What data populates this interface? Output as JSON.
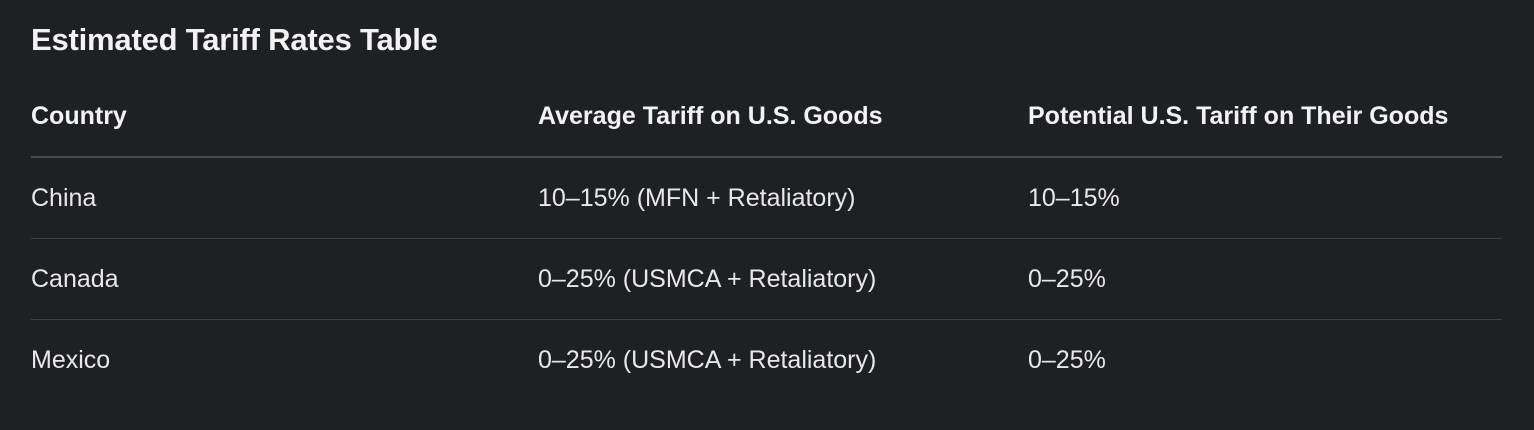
{
  "title": "Estimated Tariff Rates Table",
  "table": {
    "headers": [
      "Country",
      "Average Tariff on U.S. Goods",
      "Potential U.S. Tariff on Their Goods"
    ],
    "rows": [
      [
        "China",
        "10–15% (MFN + Retaliatory)",
        "10–15%"
      ],
      [
        "Canada",
        "0–25% (USMCA + Retaliatory)",
        "0–25%"
      ],
      [
        "Mexico",
        "0–25% (USMCA + Retaliatory)",
        "0–25%"
      ]
    ]
  },
  "colors": {
    "background": "#1f2023",
    "text": "#ececec",
    "divider": "#4a4b4f"
  }
}
